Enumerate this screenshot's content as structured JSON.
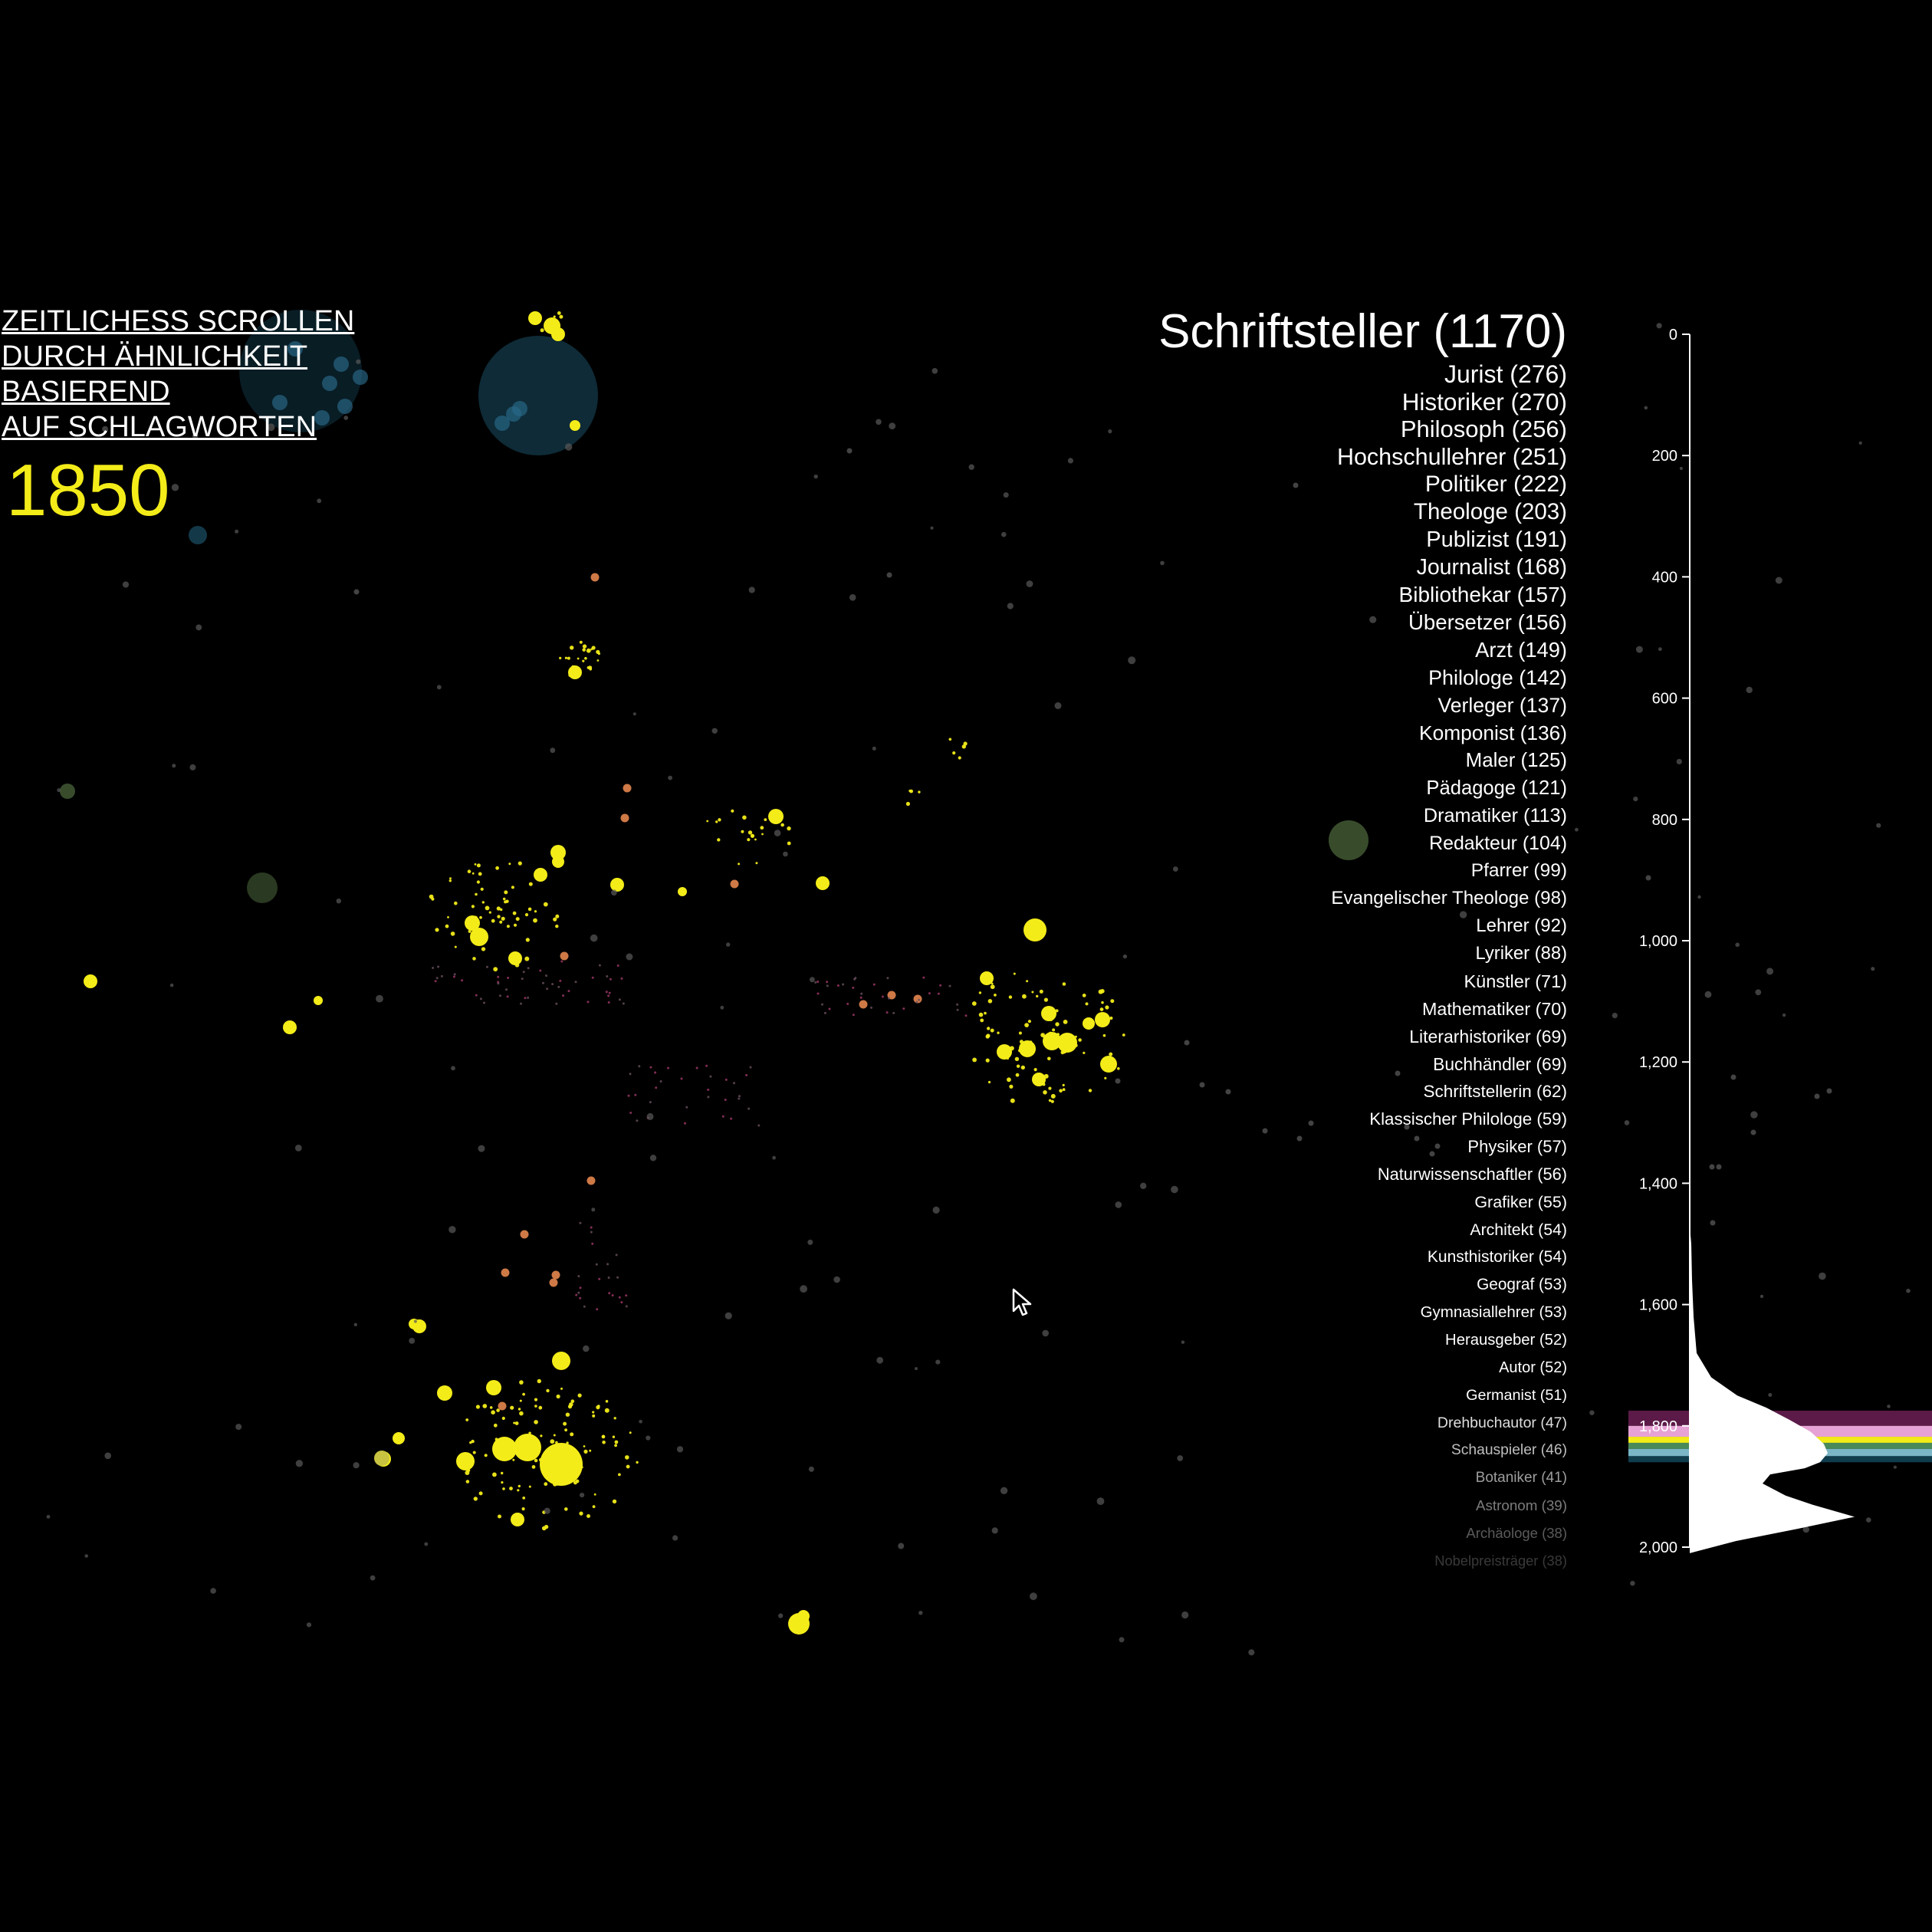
{
  "title": {
    "lines": [
      "ZEITLICHESS SCROLLEN",
      "DURCH ÄHNLICHKEIT",
      "BASIEREND",
      "AUF SCHLAGWORTEN"
    ]
  },
  "current_year": "1850",
  "categories": [
    {
      "label": "Schriftsteller (1170)"
    },
    {
      "label": "Jurist (276)"
    },
    {
      "label": "Historiker (270)"
    },
    {
      "label": "Philosoph (256)"
    },
    {
      "label": "Hochschullehrer (251)"
    },
    {
      "label": "Politiker (222)"
    },
    {
      "label": "Theologe (203)"
    },
    {
      "label": "Publizist (191)"
    },
    {
      "label": "Journalist (168)"
    },
    {
      "label": "Bibliothekar (157)"
    },
    {
      "label": "Übersetzer (156)"
    },
    {
      "label": "Arzt (149)"
    },
    {
      "label": "Philologe (142)"
    },
    {
      "label": "Verleger (137)"
    },
    {
      "label": "Komponist (136)"
    },
    {
      "label": "Maler (125)"
    },
    {
      "label": "Pädagoge (121)"
    },
    {
      "label": "Dramatiker (113)"
    },
    {
      "label": "Redakteur (104)"
    },
    {
      "label": "Pfarrer (99)"
    },
    {
      "label": "Evangelischer Theologe (98)"
    },
    {
      "label": "Lehrer (92)"
    },
    {
      "label": "Lyriker (88)"
    },
    {
      "label": "Künstler (71)"
    },
    {
      "label": "Mathematiker (70)"
    },
    {
      "label": "Literarhistoriker (69)"
    },
    {
      "label": "Buchhändler (69)"
    },
    {
      "label": "Schriftstellerin (62)"
    },
    {
      "label": "Klassischer Philologe (59)"
    },
    {
      "label": "Physiker (57)"
    },
    {
      "label": "Naturwissenschaftler (56)"
    },
    {
      "label": "Grafiker (55)"
    },
    {
      "label": "Architekt (54)"
    },
    {
      "label": "Kunsthistoriker (54)"
    },
    {
      "label": "Geograf (53)"
    },
    {
      "label": "Gymnasiallehrer (53)"
    },
    {
      "label": "Herausgeber (52)"
    },
    {
      "label": "Autor (52)"
    },
    {
      "label": "Germanist (51)"
    },
    {
      "label": "Drehbuchautor (47)"
    },
    {
      "label": "Schauspieler (46)"
    },
    {
      "label": "Botaniker (41)"
    },
    {
      "label": "Astronom (39)"
    },
    {
      "label": "Archäologe (38)"
    },
    {
      "label": "Nobelpreisträger (38)"
    }
  ],
  "timeline": {
    "ticks": [
      "0",
      "200",
      "400",
      "600",
      "800",
      "1,000",
      "1,200",
      "1,400",
      "1,600",
      "1,800",
      "2,000"
    ],
    "range": [
      0,
      2000
    ],
    "density": [
      [
        1470,
        0
      ],
      [
        1500,
        2
      ],
      [
        1560,
        3
      ],
      [
        1620,
        5
      ],
      [
        1680,
        9
      ],
      [
        1720,
        28
      ],
      [
        1750,
        62
      ],
      [
        1770,
        100
      ],
      [
        1790,
        130
      ],
      [
        1810,
        158
      ],
      [
        1830,
        175
      ],
      [
        1845,
        180
      ],
      [
        1860,
        170
      ],
      [
        1870,
        150
      ],
      [
        1880,
        105
      ],
      [
        1895,
        95
      ],
      [
        1915,
        125
      ],
      [
        1930,
        160
      ],
      [
        1950,
        215
      ],
      [
        1970,
        140
      ],
      [
        1990,
        60
      ],
      [
        2010,
        0
      ]
    ],
    "selection_bands": [
      {
        "from": 1775,
        "to": 1800,
        "color": "#5c1a48"
      },
      {
        "from": 1800,
        "to": 1818,
        "color": "#e6a2d4"
      },
      {
        "from": 1818,
        "to": 1828,
        "color": "#f3ec19"
      },
      {
        "from": 1828,
        "to": 1838,
        "color": "#4a8a5a"
      },
      {
        "from": 1838,
        "to": 1850,
        "color": "#7ab6c6"
      },
      {
        "from": 1850,
        "to": 1860,
        "color": "#0f3d4e"
      }
    ]
  },
  "colors": {
    "background": "#000000",
    "highlight": "#f3ec19",
    "orange": "#d9804a",
    "teal": "#1f5f7a",
    "green": "#5d7f4a",
    "gray": "#5a5a5a"
  },
  "icons": {
    "cursor": "mouse-pointer-icon"
  }
}
